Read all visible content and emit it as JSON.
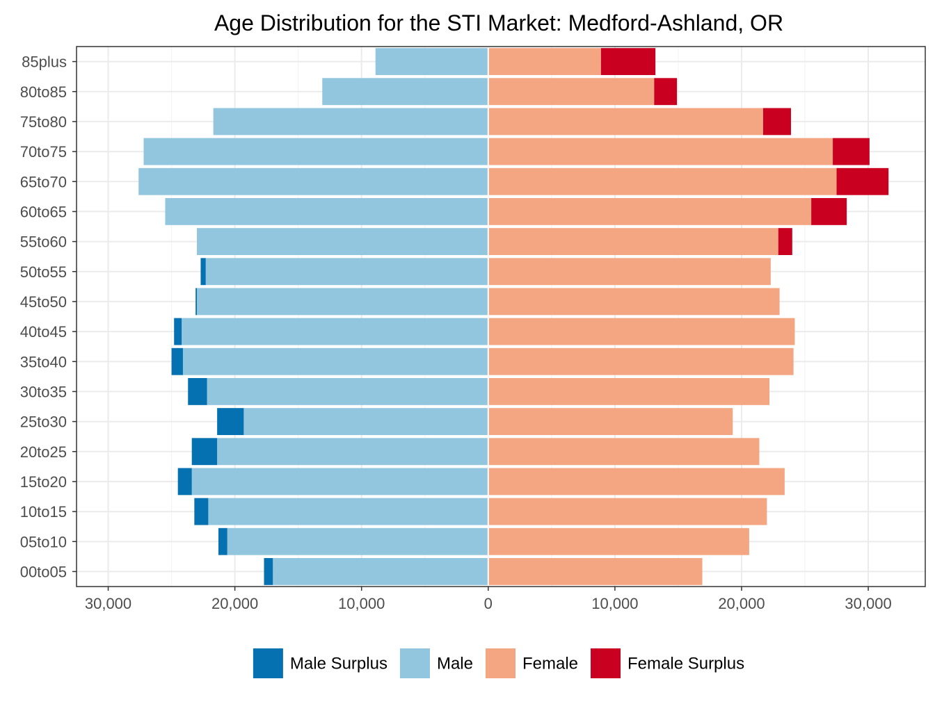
{
  "chart_data": {
    "type": "bar",
    "orientation": "horizontal",
    "title": "Age Distribution for the STI Market: Medford-Ashland, OR",
    "xlabel": "",
    "ylabel": "",
    "xlim": [
      -32500,
      34500
    ],
    "x_ticks": [
      -30000,
      -20000,
      -10000,
      0,
      10000,
      20000,
      30000
    ],
    "x_tick_labels": [
      "30,000",
      "20,000",
      "10,000",
      "0",
      "10,000",
      "20,000",
      "30,000"
    ],
    "grid": true,
    "legend_position": "bottom",
    "categories": [
      "00to05",
      "05to10",
      "10to15",
      "15to20",
      "20to25",
      "25to30",
      "30to35",
      "35to40",
      "40to45",
      "45to50",
      "50to55",
      "55to60",
      "60to65",
      "65to70",
      "70to75",
      "75to80",
      "80to85",
      "85plus"
    ],
    "series": [
      {
        "name": "Male Surplus",
        "color": "#0571b0",
        "values": [
          700,
          700,
          1100,
          1100,
          2000,
          2100,
          1500,
          900,
          600,
          100,
          400,
          0,
          0,
          0,
          0,
          0,
          0,
          0
        ]
      },
      {
        "name": "Male",
        "color": "#92c5de",
        "values": [
          17000,
          20600,
          22100,
          23400,
          21400,
          19300,
          22200,
          24100,
          24200,
          23000,
          22300,
          23000,
          25500,
          27600,
          27200,
          21700,
          13100,
          8900
        ]
      },
      {
        "name": "Female",
        "color": "#f4a582",
        "values": [
          16900,
          20600,
          22000,
          23400,
          21400,
          19300,
          22200,
          24100,
          24200,
          23000,
          22300,
          22900,
          25500,
          27500,
          27200,
          21700,
          13100,
          8900
        ]
      },
      {
        "name": "Female Surplus",
        "color": "#ca0020",
        "values": [
          0,
          0,
          0,
          0,
          0,
          0,
          0,
          0,
          0,
          0,
          0,
          1100,
          2800,
          4100,
          2900,
          2200,
          1800,
          4300
        ]
      }
    ]
  }
}
